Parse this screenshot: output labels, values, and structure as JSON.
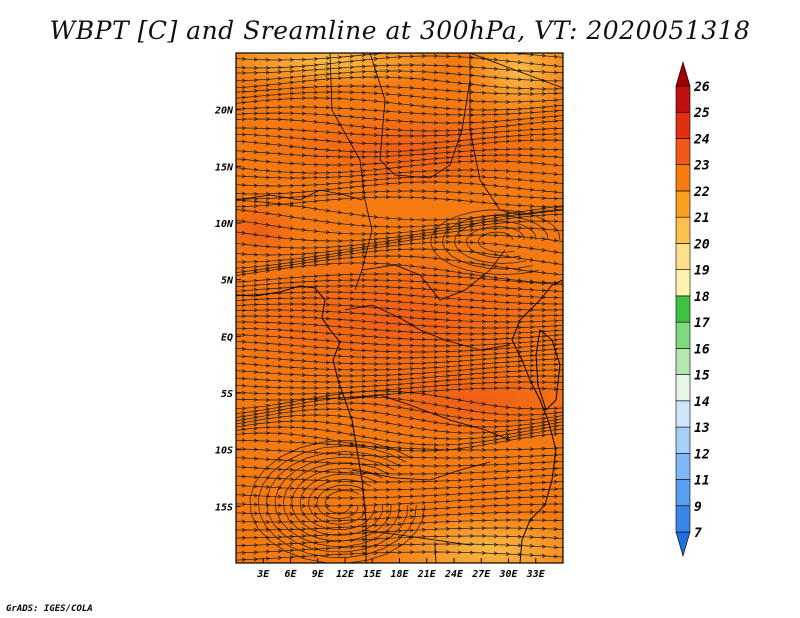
{
  "title": "WBPT [C] and Sreamline at 300hPa, VT: 2020051318",
  "credit": "GrADS: IGES/COLA",
  "map": {
    "lon_range": [
      0,
      36
    ],
    "lat_range": [
      -20,
      25
    ],
    "lon_ticks": [
      "3E",
      "6E",
      "9E",
      "12E",
      "15E",
      "18E",
      "21E",
      "24E",
      "27E",
      "30E",
      "33E"
    ],
    "lon_tick_values": [
      3,
      6,
      9,
      12,
      15,
      18,
      21,
      24,
      27,
      30,
      33
    ],
    "lat_ticks": [
      "20N",
      "15N",
      "10N",
      "5N",
      "EQ",
      "5S",
      "10S",
      "15S"
    ],
    "lat_tick_values": [
      20,
      15,
      10,
      5,
      0,
      -5,
      -10,
      -15
    ],
    "field": "WBPT",
    "field_units": "C",
    "overlay": "streamlines",
    "level": "300hPa",
    "valid_time": "2020051318"
  },
  "colorbar": {
    "labels": [
      "7",
      "9",
      "11",
      "12",
      "13",
      "14",
      "15",
      "16",
      "17",
      "18",
      "19",
      "20",
      "21",
      "22",
      "23",
      "24",
      "25",
      "26"
    ],
    "colors": [
      "#2070d8",
      "#3a86e8",
      "#5aa0f0",
      "#7eb8f5",
      "#a5cff8",
      "#cfe6fb",
      "#e8f6e8",
      "#b4e8b0",
      "#80d880",
      "#40c040",
      "#fff3b0",
      "#fde08a",
      "#fbc050",
      "#f9a020",
      "#f77c10",
      "#f05818",
      "#e03010",
      "#c01010",
      "#a00000"
    ]
  }
}
